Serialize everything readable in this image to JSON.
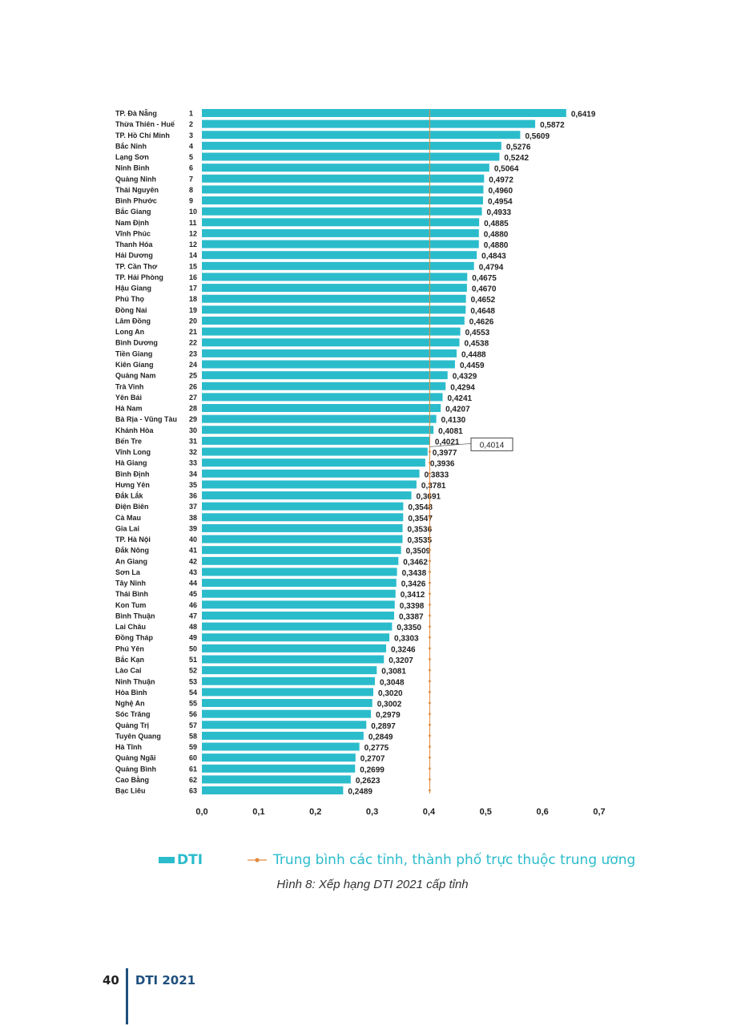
{
  "colors": {
    "bar": "#2bbccc",
    "average_line": "#e08a3c",
    "label_box_border": "#444444",
    "footer_accent": "#1f4f7d"
  },
  "chart_data": {
    "type": "bar",
    "orientation": "horizontal",
    "categories": [
      "TP. Đà Nẵng",
      "Thừa Thiên - Huế",
      "TP. Hồ Chí Minh",
      "Bắc Ninh",
      "Lạng Sơn",
      "Ninh Bình",
      "Quảng Ninh",
      "Thái Nguyên",
      "Bình Phước",
      "Bắc Giang",
      "Nam Định",
      "Vĩnh Phúc",
      "Thanh Hóa",
      "Hải Dương",
      "TP. Cần Thơ",
      "TP. Hải Phòng",
      "Hậu Giang",
      "Phú Thọ",
      "Đồng Nai",
      "Lâm Đồng",
      "Long An",
      "Bình Dương",
      "Tiền Giang",
      "Kiên Giang",
      "Quảng Nam",
      "Trà Vinh",
      "Yên Bái",
      "Hà Nam",
      "Bà Rịa - Vũng Tàu",
      "Khánh Hòa",
      "Bến Tre",
      "Vĩnh Long",
      "Hà Giang",
      "Bình Định",
      "Hưng Yên",
      "Đắk Lắk",
      "Điện Biên",
      "Cà Mau",
      "Gia Lai",
      "TP. Hà Nội",
      "Đắk Nông",
      "An Giang",
      "Sơn La",
      "Tây Ninh",
      "Thái Bình",
      "Kon Tum",
      "Bình Thuận",
      "Lai Châu",
      "Đồng Tháp",
      "Phú Yên",
      "Bắc Kạn",
      "Lào Cai",
      "Ninh Thuận",
      "Hòa Bình",
      "Nghệ An",
      "Sóc Trăng",
      "Quảng Trị",
      "Tuyên Quang",
      "Hà Tĩnh",
      "Quảng Ngãi",
      "Quảng Bình",
      "Cao Bằng",
      "Bạc Liêu"
    ],
    "ranks": [
      "1",
      "2",
      "3",
      "4",
      "5",
      "6",
      "7",
      "8",
      "9",
      "10",
      "11",
      "12",
      "12",
      "14",
      "15",
      "16",
      "17",
      "18",
      "19",
      "20",
      "21",
      "22",
      "23",
      "24",
      "25",
      "26",
      "27",
      "28",
      "29",
      "30",
      "31",
      "32",
      "33",
      "34",
      "35",
      "36",
      "37",
      "38",
      "39",
      "40",
      "41",
      "42",
      "43",
      "44",
      "45",
      "46",
      "47",
      "48",
      "49",
      "50",
      "51",
      "52",
      "53",
      "54",
      "55",
      "56",
      "57",
      "58",
      "59",
      "60",
      "61",
      "62",
      "63"
    ],
    "values": [
      0.6419,
      0.5872,
      0.5609,
      0.5276,
      0.5242,
      0.5064,
      0.4972,
      0.496,
      0.4954,
      0.4933,
      0.4885,
      0.488,
      0.488,
      0.4843,
      0.4794,
      0.4675,
      0.467,
      0.4652,
      0.4648,
      0.4626,
      0.4553,
      0.4538,
      0.4488,
      0.4459,
      0.4329,
      0.4294,
      0.4241,
      0.4207,
      0.413,
      0.4081,
      0.4021,
      0.3977,
      0.3936,
      0.3833,
      0.3781,
      0.3691,
      0.3548,
      0.3547,
      0.3536,
      0.3535,
      0.3509,
      0.3462,
      0.3438,
      0.3426,
      0.3412,
      0.3398,
      0.3387,
      0.335,
      0.3303,
      0.3246,
      0.3207,
      0.3081,
      0.3048,
      0.302,
      0.3002,
      0.2979,
      0.2897,
      0.2849,
      0.2775,
      0.2707,
      0.2699,
      0.2623,
      0.2489
    ],
    "value_labels": [
      "0,6419",
      "0,5872",
      "0,5609",
      "0,5276",
      "0,5242",
      "0,5064",
      "0,4972",
      "0,4960",
      "0,4954",
      "0,4933",
      "0,4885",
      "0,4880",
      "0,4880",
      "0,4843",
      "0,4794",
      "0,4675",
      "0,4670",
      "0,4652",
      "0,4648",
      "0,4626",
      "0,4553",
      "0,4538",
      "0,4488",
      "0,4459",
      "0,4329",
      "0,4294",
      "0,4241",
      "0,4207",
      "0,4130",
      "0,4081",
      "0,4021",
      "0,3977",
      "0,3936",
      "0,3833",
      "0,3781",
      "0,3691",
      "0,3548",
      "0,3547",
      "0,3536",
      "0,3535",
      "0,3509",
      "0,3462",
      "0,3438",
      "0,3426",
      "0,3412",
      "0,3398",
      "0,3387",
      "0,3350",
      "0,3303",
      "0,3246",
      "0,3207",
      "0,3081",
      "0,3048",
      "0,3020",
      "0,3002",
      "0,2979",
      "0,2897",
      "0,2849",
      "0,2775",
      "0,2707",
      "0,2699",
      "0,2623",
      "0,2489"
    ],
    "average": 0.4014,
    "average_label": "0,4014",
    "xlim": [
      0,
      0.7
    ],
    "x_ticks": [
      0,
      0.1,
      0.2,
      0.3,
      0.4,
      0.5,
      0.6,
      0.7
    ],
    "x_tick_labels": [
      "0,0",
      "0,1",
      "0,2",
      "0,3",
      "0,4",
      "0,5",
      "0,6",
      "0,7"
    ],
    "grid": false,
    "legend": {
      "placement": "bottom",
      "entries": [
        {
          "label": "DTI",
          "kind": "bar"
        },
        {
          "label": "Trung bình các tỉnh, thành phố trực thuộc trung ương",
          "kind": "line"
        }
      ]
    }
  },
  "caption": "Hình 8: Xếp hạng DTI 2021 cấp tỉnh",
  "footer": {
    "page_number": "40",
    "title": "DTI 2021"
  }
}
